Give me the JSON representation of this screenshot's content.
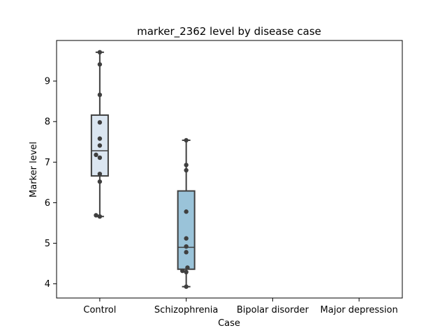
{
  "chart_data": {
    "type": "box",
    "title": "marker_2362 level by disease case",
    "xlabel": "Case",
    "ylabel": "Marker level",
    "ylim": [
      3.65,
      10.0
    ],
    "yticks": [
      4,
      5,
      6,
      7,
      8,
      9
    ],
    "grid": false,
    "categories": [
      "Control",
      "Schizophrenia",
      "Bipolar disorder",
      "Major depression"
    ],
    "colors": {
      "Control": "#dbe6f1",
      "Schizophrenia": "#9ac3d9"
    },
    "boxes": [
      {
        "category": "Control",
        "whisker_low": 5.66,
        "q1": 6.66,
        "median": 7.28,
        "q3": 8.16,
        "whisker_high": 9.71
      },
      {
        "category": "Schizophrenia",
        "whisker_low": 3.93,
        "q1": 4.36,
        "median": 4.9,
        "q3": 6.29,
        "whisker_high": 7.54
      }
    ],
    "points": [
      {
        "category": "Control",
        "values": [
          9.71,
          9.41,
          8.66,
          7.98,
          7.58,
          7.41,
          7.18,
          7.11,
          6.71,
          6.52,
          5.69,
          5.66
        ],
        "jitter": [
          0,
          0,
          0,
          0,
          0,
          0,
          -0.15,
          0,
          0,
          0,
          -0.15,
          0
        ]
      },
      {
        "category": "Schizophrenia",
        "values": [
          7.54,
          6.93,
          6.8,
          5.78,
          5.12,
          4.92,
          4.78,
          4.4,
          4.32,
          4.29,
          3.93
        ],
        "jitter": [
          0,
          0,
          0,
          0,
          0,
          0,
          0,
          0.05,
          -0.15,
          0,
          0
        ]
      }
    ]
  }
}
